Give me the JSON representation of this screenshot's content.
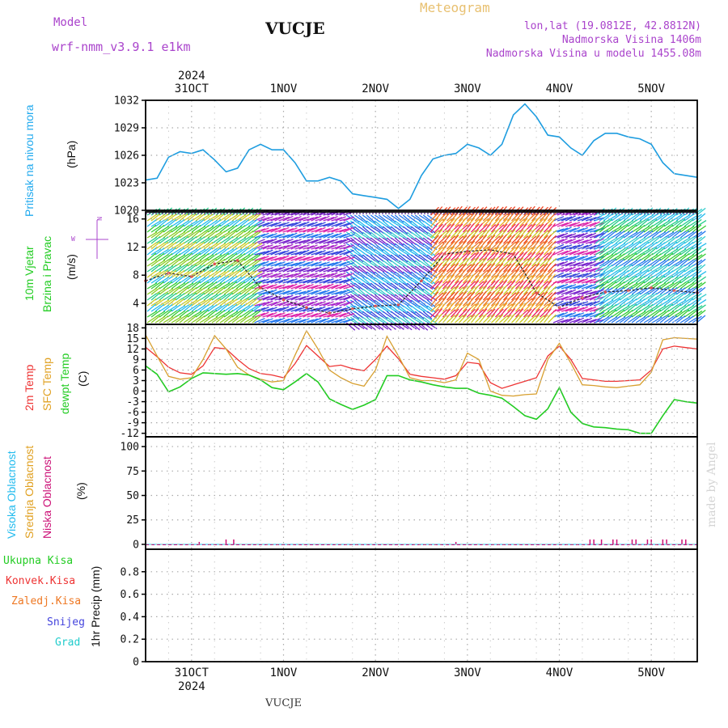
{
  "header": {
    "model_label": "Model",
    "model_name": "wrf-nmm_v3.9.1  e1km",
    "station": "VUCJE",
    "meteogram": "Meteogram",
    "lonlat": "lon,lat (19.0812E, 42.8812N)",
    "altitude": "Nadmorska Visina 1406m",
    "model_altitude": "Nadmorska Visina u modelu 1455.08m",
    "footer_station": "VUCJE",
    "credit": "made by Angel",
    "year_top": "2024",
    "year_bottom": "2024"
  },
  "panel_labels": {
    "pressure": "Pritisak na nivou mora",
    "pressure_unit": "(hPa)",
    "wind_a": "10m Vjetar",
    "wind_b": "Brzina i Pravac",
    "wind_unit": "(m/s)",
    "temp_2m": "2m Temp",
    "temp_sfc": "SFC Temp",
    "temp_dew": "dewpt Temp",
    "temp_unit": "(C)",
    "cloud_high": "Visoka Oblacnost",
    "cloud_mid": "Srednja Oblacnost",
    "cloud_low": "Niska Oblacnost",
    "cloud_unit": "(%)",
    "precip_unit": "1hr Precip (mm)",
    "precip_total": "Ukupna Kisa",
    "precip_conv": "Konvek.Kisa",
    "precip_frz": "Zaledj.Kisa",
    "precip_snow": "Snijeg",
    "precip_grad": "Grad"
  },
  "colors": {
    "pressure": "#1e9de0",
    "temp_2m": "#ee3333",
    "temp_sfc": "#d8a030",
    "temp_dew": "#22cc22",
    "wind_speed": "#222222",
    "wind_points": "#e05050",
    "cloud_low": "#cc1177",
    "cloud_mid": "#e0a020",
    "cloud_high": "#22bbee",
    "meteogram": "#e8c070",
    "purple": "#aa44cc",
    "grid": "#aaaaaa",
    "credit": "#dddddd"
  },
  "chart_data": {
    "type": "line",
    "x_unit": "hour since 2024-10-30 12:00",
    "x_range": [
      0,
      144
    ],
    "days": [
      "31OCT",
      "1NOV",
      "2NOV",
      "3NOV",
      "4NOV",
      "5NOV"
    ],
    "day_hours": [
      12,
      36,
      60,
      84,
      108,
      132
    ],
    "pressure": {
      "name": "Pritisak na nivou mora",
      "ylim": [
        1020,
        1032
      ],
      "yticks": [
        1020,
        1023,
        1026,
        1029,
        1032
      ],
      "x": [
        0,
        3,
        6,
        9,
        12,
        15,
        18,
        21,
        24,
        27,
        30,
        33,
        36,
        39,
        42,
        45,
        48,
        51,
        54,
        57,
        60,
        63,
        66,
        69,
        72,
        75,
        78,
        81,
        84,
        87,
        90,
        93,
        96,
        99,
        102,
        105,
        108,
        111,
        114,
        117,
        120,
        123,
        126,
        129,
        132,
        135,
        138,
        141,
        144
      ],
      "values": [
        1023.3,
        1023.5,
        1025.8,
        1026.4,
        1026.2,
        1026.6,
        1025.5,
        1024.2,
        1024.6,
        1026.6,
        1027.2,
        1026.6,
        1026.6,
        1025.2,
        1023.2,
        1023.2,
        1023.6,
        1023.2,
        1021.8,
        1021.6,
        1021.4,
        1021.2,
        1020.2,
        1021.2,
        1023.8,
        1025.6,
        1026.0,
        1026.2,
        1027.2,
        1026.8,
        1026.0,
        1027.2,
        1030.4,
        1031.6,
        1030.2,
        1028.2,
        1028.0,
        1026.8,
        1026.0,
        1027.6,
        1028.4,
        1028.4,
        1028.0,
        1027.8,
        1027.2,
        1025.2,
        1024.0,
        1023.8,
        1023.6
      ]
    },
    "wind": {
      "name": "10m Vjetar",
      "ylim": [
        1,
        17
      ],
      "yticks": [
        4,
        8,
        12,
        16
      ],
      "x": [
        0,
        6,
        12,
        18,
        24,
        30,
        36,
        42,
        48,
        54,
        60,
        66,
        72,
        78,
        84,
        90,
        96,
        102,
        108,
        114,
        120,
        126,
        132,
        138,
        144
      ],
      "values": [
        7.2,
        8.3,
        7.8,
        9.6,
        10.1,
        6.2,
        4.5,
        3.4,
        2.6,
        3.2,
        3.6,
        3.8,
        7.2,
        11.0,
        11.4,
        11.6,
        11.0,
        5.5,
        3.4,
        4.8,
        5.6,
        5.8,
        6.2,
        5.8,
        5.5
      ]
    },
    "temperature": {
      "ylim": [
        -13,
        19
      ],
      "yticks": [
        -12,
        -9,
        -6,
        -3,
        0,
        3,
        6,
        9,
        12,
        15,
        18
      ],
      "x": [
        0,
        3,
        6,
        9,
        12,
        15,
        18,
        21,
        24,
        27,
        30,
        33,
        36,
        39,
        42,
        45,
        48,
        51,
        54,
        57,
        60,
        63,
        66,
        69,
        72,
        75,
        78,
        81,
        84,
        87,
        90,
        93,
        96,
        99,
        102,
        105,
        108,
        111,
        114,
        117,
        120,
        123,
        126,
        129,
        132,
        135,
        138,
        141,
        144
      ],
      "series": [
        {
          "name": "2m Temp",
          "values": [
            12.5,
            9.8,
            6.8,
            5.2,
            4.8,
            7.2,
            12.4,
            12.0,
            9.0,
            6.4,
            5.0,
            4.6,
            3.8,
            7.8,
            13.0,
            10.0,
            7.0,
            7.4,
            6.4,
            5.8,
            9.0,
            12.8,
            9.2,
            4.8,
            4.2,
            3.8,
            3.4,
            4.4,
            8.2,
            7.8,
            2.4,
            0.8,
            1.8,
            2.8,
            3.8,
            10.0,
            12.8,
            9.0,
            3.6,
            3.2,
            2.8,
            2.8,
            3.0,
            3.2,
            6.0,
            12.0,
            12.8,
            12.4,
            12.0
          ]
        },
        {
          "name": "SFC Temp",
          "values": [
            16.0,
            10.0,
            4.2,
            3.4,
            3.8,
            9.0,
            15.8,
            12.0,
            6.8,
            4.6,
            3.4,
            2.6,
            3.0,
            10.2,
            17.2,
            12.0,
            6.0,
            3.8,
            2.2,
            1.4,
            6.0,
            15.6,
            10.0,
            3.8,
            3.0,
            3.0,
            2.4,
            3.2,
            10.8,
            9.0,
            0.0,
            -1.2,
            -1.4,
            -1.0,
            -0.8,
            9.0,
            13.6,
            8.0,
            1.8,
            1.6,
            1.2,
            1.0,
            1.4,
            1.8,
            5.4,
            14.6,
            15.2,
            15.0,
            14.8
          ]
        },
        {
          "name": "dewpt Temp",
          "values": [
            7.2,
            4.8,
            -0.2,
            1.2,
            3.6,
            5.2,
            5.0,
            4.8,
            5.0,
            4.6,
            3.2,
            1.0,
            0.4,
            2.6,
            5.0,
            2.6,
            -2.2,
            -3.8,
            -5.2,
            -4.0,
            -2.4,
            4.4,
            4.4,
            3.2,
            2.6,
            1.8,
            1.2,
            0.8,
            0.8,
            -0.6,
            -1.2,
            -2.0,
            -4.4,
            -7.0,
            -8.0,
            -5.0,
            1.0,
            -6.0,
            -9.2,
            -10.2,
            -10.4,
            -10.8,
            -11.0,
            -12.0,
            -12.0,
            -7.0,
            -2.4,
            -3.0,
            -3.4
          ]
        }
      ]
    },
    "clouds": {
      "ylim": [
        -5,
        110
      ],
      "yticks": [
        0,
        25,
        50,
        75,
        100
      ],
      "low_x": [
        14,
        21,
        23,
        81,
        116,
        117,
        119,
        122,
        123,
        127,
        128,
        131,
        132,
        135,
        136,
        140,
        141
      ],
      "low_values": [
        2.5,
        5.0,
        5.0,
        2.5,
        5.0,
        5.0,
        5.0,
        5.0,
        5.0,
        5.0,
        5.0,
        5.0,
        5.0,
        5.0,
        5.0,
        5.0,
        5.0
      ]
    },
    "precip": {
      "ylim": [
        0,
        1.0
      ],
      "yticks": [
        0,
        0.2,
        0.4,
        0.6,
        0.8
      ],
      "values": []
    }
  }
}
